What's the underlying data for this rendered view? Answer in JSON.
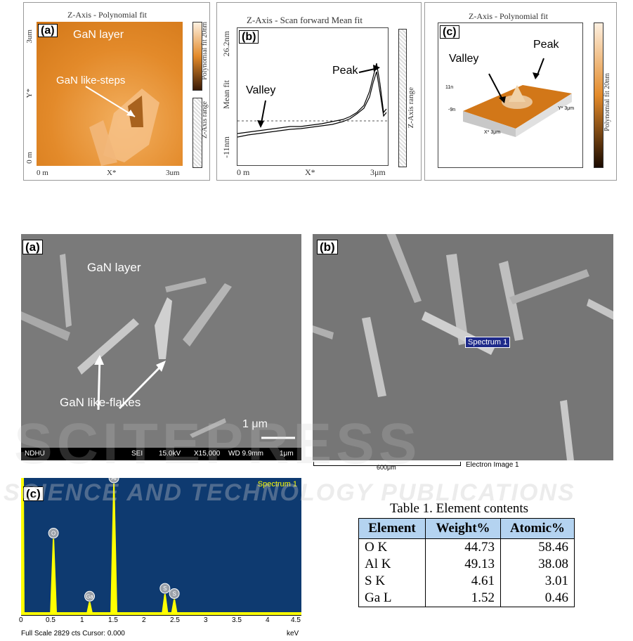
{
  "afm": {
    "a": {
      "label": "(a)",
      "title": "Z-Axis - Polynomial fit",
      "layer": "GaN layer",
      "steps": "GaN like-steps",
      "y_top": "3um",
      "y_bot": "0 m",
      "x_left": "0 m",
      "x_mid": "X*",
      "x_right": "3um",
      "y_axis": "Y*",
      "cbar": "Polynomial fit 20nm",
      "zrange": "Z-Axis range"
    },
    "b": {
      "label": "(b)",
      "title": "Z-Axis - Scan forward   Mean fit",
      "ytop": "26.2nm",
      "ylabel": "Mean fit",
      "ybot": "-11nm",
      "valley": "Valley",
      "peak": "Peak",
      "x_left": "0 m",
      "x_mid": "X*",
      "x_right": "3μm",
      "zrange": "Z-Axis range"
    },
    "c": {
      "label": "(c)",
      "title": "Z-Axis - Polynomial fit",
      "valley": "Valley",
      "peak": "Peak",
      "cbar": "Polynomial fit 20nm",
      "z_top": "11n",
      "z_bot": "-9n",
      "x_ax": "X* 3μm",
      "y_ax": "Y* 3μm"
    }
  },
  "sem": {
    "a": {
      "label": "(a)",
      "layer": "GaN layer",
      "flakes": "GaN like-flakes",
      "scale": "1 μm",
      "footer": {
        "inst": "NDHU",
        "mode": "SEI",
        "kv": "15.0kV",
        "mag": "X15,000",
        "wd": "WD 9.9mm",
        "bar": "1μm"
      }
    },
    "b": {
      "label": "(b)",
      "spectrum": "Spectrum 1",
      "scale": "600μm",
      "image": "Electron Image 1"
    }
  },
  "eds": {
    "label": "(c)",
    "spectrum": "Spectrum 1",
    "footer": "Full Scale 2829 cts Cursor: 0.000",
    "unit": "keV",
    "peaks": [
      {
        "el": "O",
        "kev": 0.52
      },
      {
        "el": "Ga",
        "kev": 1.1
      },
      {
        "el": "Al",
        "kev": 1.49
      },
      {
        "el": "S",
        "kev": 2.31
      },
      {
        "el": "S",
        "kev": 2.46
      }
    ],
    "ticks": [
      "0",
      "0.5",
      "1",
      "1.5",
      "2",
      "2.5",
      "3",
      "3.5",
      "4",
      "4.5"
    ]
  },
  "watermark": {
    "line1": "SCITEPRESS",
    "line2": "SCIENCE AND TECHNOLOGY PUBLICATIONS"
  },
  "table": {
    "caption": "Table 1. Element contents",
    "headers": [
      "Element",
      "Weight%",
      "Atomic%"
    ],
    "rows": [
      [
        "O K",
        "44.73",
        "58.46"
      ],
      [
        "Al K",
        "49.13",
        "38.08"
      ],
      [
        "S K",
        "4.61",
        "3.01"
      ],
      [
        "Ga L",
        "1.52",
        "0.46"
      ]
    ]
  },
  "colors": {
    "eds_bg": "#0e3a70",
    "eds_peak": "#ffff00",
    "header": "#b4d3f0"
  }
}
